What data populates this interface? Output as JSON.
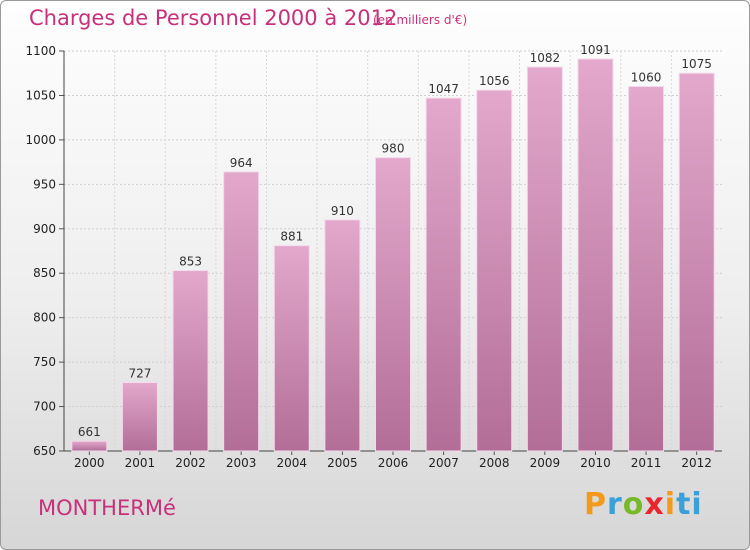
{
  "header": {
    "title": "Charges de Personnel 2000 à 2012",
    "subtitle": "(en milliers d'€)"
  },
  "footer": {
    "town": "MONTHERMé",
    "logo": "Proxiti",
    "logo_letters": [
      "P",
      "r",
      "o",
      "x",
      "i",
      "ti"
    ]
  },
  "colors": {
    "accent": "#c8307a",
    "bar_light": "#e3a8cc",
    "bar_dark": "#b26e97"
  },
  "chart_data": {
    "type": "bar",
    "title": "Charges de Personnel 2000 à 2012",
    "subtitle": "(en milliers d'€)",
    "categories": [
      "2000",
      "2001",
      "2002",
      "2003",
      "2004",
      "2005",
      "2006",
      "2007",
      "2008",
      "2009",
      "2010",
      "2011",
      "2012"
    ],
    "values": [
      661,
      727,
      853,
      964,
      881,
      910,
      980,
      1047,
      1056,
      1082,
      1091,
      1060,
      1075
    ],
    "ylim": [
      650,
      1100
    ],
    "yticks": [
      650,
      700,
      750,
      800,
      850,
      900,
      950,
      1000,
      1050,
      1100
    ],
    "grid": true,
    "data_labels": true,
    "legend": "none"
  }
}
